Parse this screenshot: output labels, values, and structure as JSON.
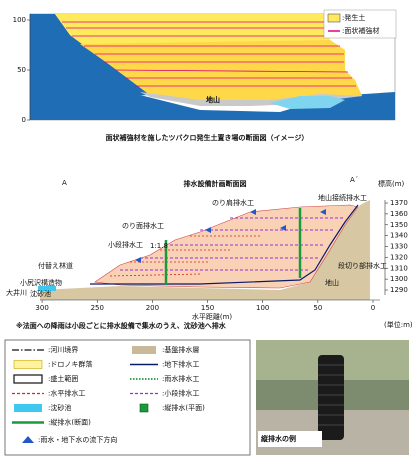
{
  "top_figure": {
    "yticks": [
      0,
      50,
      100
    ],
    "legend": [
      ":発生土",
      ":面状補強材"
    ],
    "ground_label": "地山"
  },
  "caption": "面状補強材を施したツバクロ発生土置き場の断面図（イメージ）",
  "drainage_figure": {
    "title": "排水設備計画断面図",
    "section_start": "A",
    "section_end": "A´",
    "y_axis_label": "標高(m)",
    "yticks": [
      1290,
      1300,
      1310,
      1320,
      1330,
      1340,
      1350,
      1360,
      1370
    ],
    "xticks": [
      300,
      250,
      200,
      150,
      100,
      50,
      0
    ],
    "x_axis_label": "水平距離(m)",
    "labels": [
      "のり肩排水工",
      "地山接続排水工",
      "のり面排水工",
      "小段排水工",
      "付替え林道",
      "小尻沢構造物",
      "大井川",
      "沈砂池",
      "段切り部排水工",
      "地山",
      "1:1.8"
    ],
    "unit_note": "(単位:m)"
  },
  "note": "※法面への降雨は小段ごとに排水設備で集水のうえ、沈砂池へ排水",
  "legend": {
    "left": [
      ":河川境界",
      ":ドロノキ群落",
      ":盛土範囲",
      ":水平排水工",
      ":沈砂池",
      ":縦排水(断面)",
      ":雨水・地下水の流下方向"
    ],
    "right": [
      ":基盤排水層",
      ":地下排水工",
      ":雨水排水工",
      ":小段排水工",
      ":縦排水(平面)"
    ]
  },
  "photo_caption": "縦排水の例"
}
